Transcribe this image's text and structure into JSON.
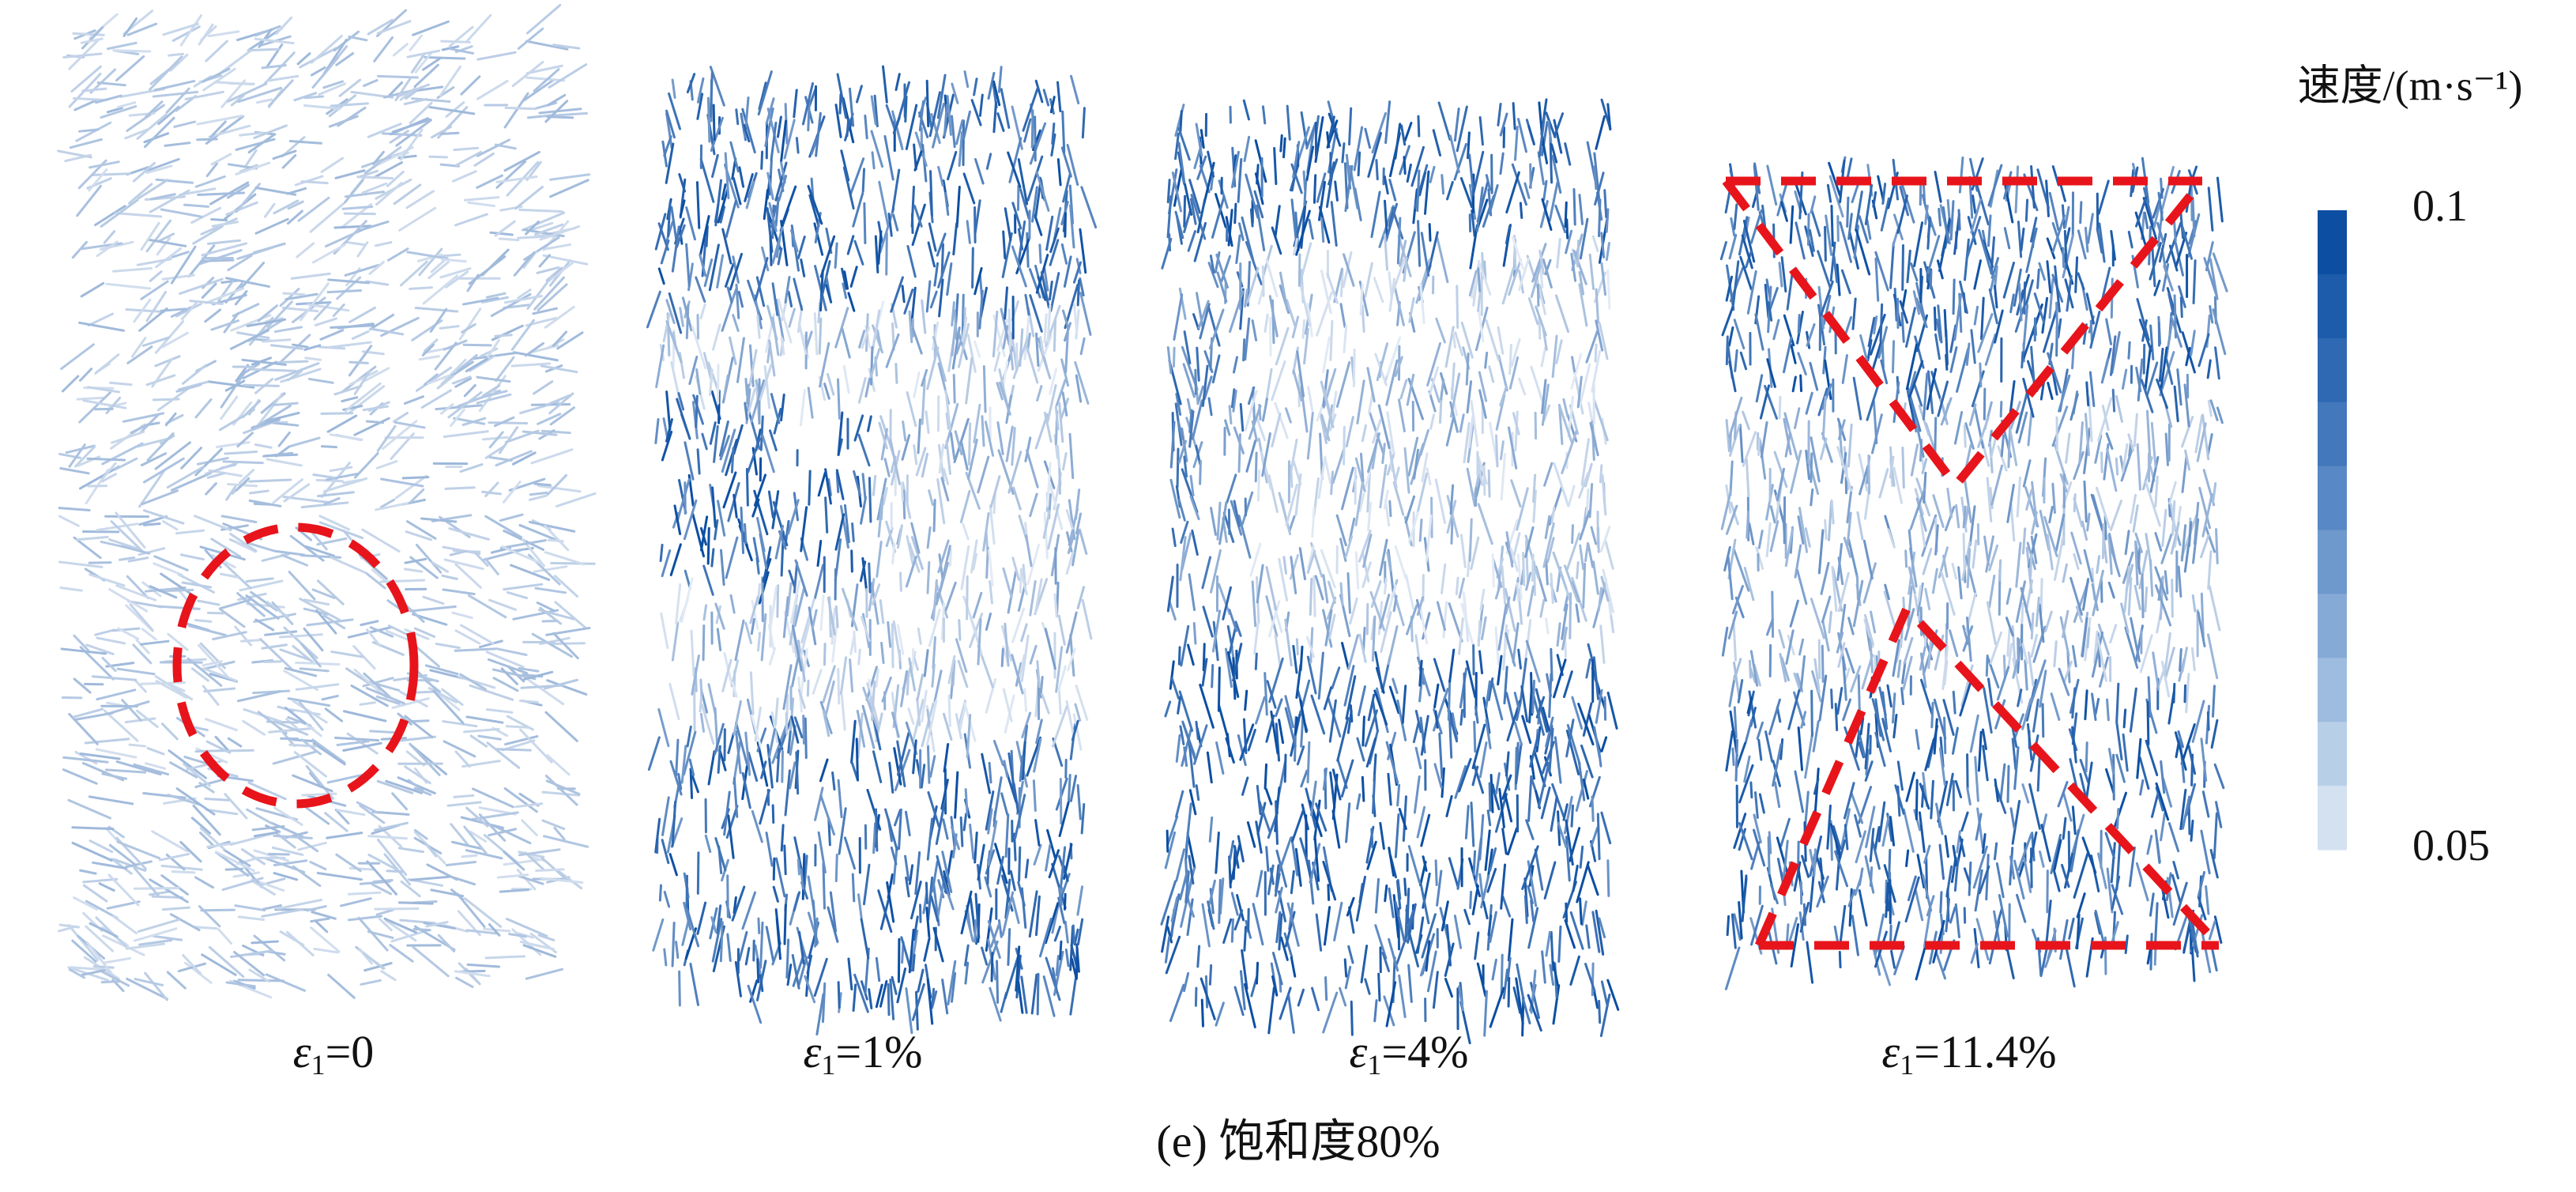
{
  "panels": [
    {
      "symbol": "ε",
      "subscript": "1",
      "value": "=0"
    },
    {
      "symbol": "ε",
      "subscript": "1",
      "value": "=1%"
    },
    {
      "symbol": "ε",
      "subscript": "1",
      "value": "=4%"
    },
    {
      "symbol": "ε",
      "subscript": "1",
      "value": "=11.4%"
    }
  ],
  "colorbar": {
    "title": "速度/(m·s⁻¹)",
    "range": [
      0.05,
      0.1
    ],
    "ticks": [
      0.1,
      0.05
    ],
    "colors": [
      "#0b4ea2",
      "#1d5cab",
      "#2f69b3",
      "#4378bc",
      "#5888c5",
      "#6e99cd",
      "#86aad6",
      "#9ebcdf",
      "#b8cfe8",
      "#d3e1f1"
    ]
  },
  "caption": "(e) 饱和度80%"
}
